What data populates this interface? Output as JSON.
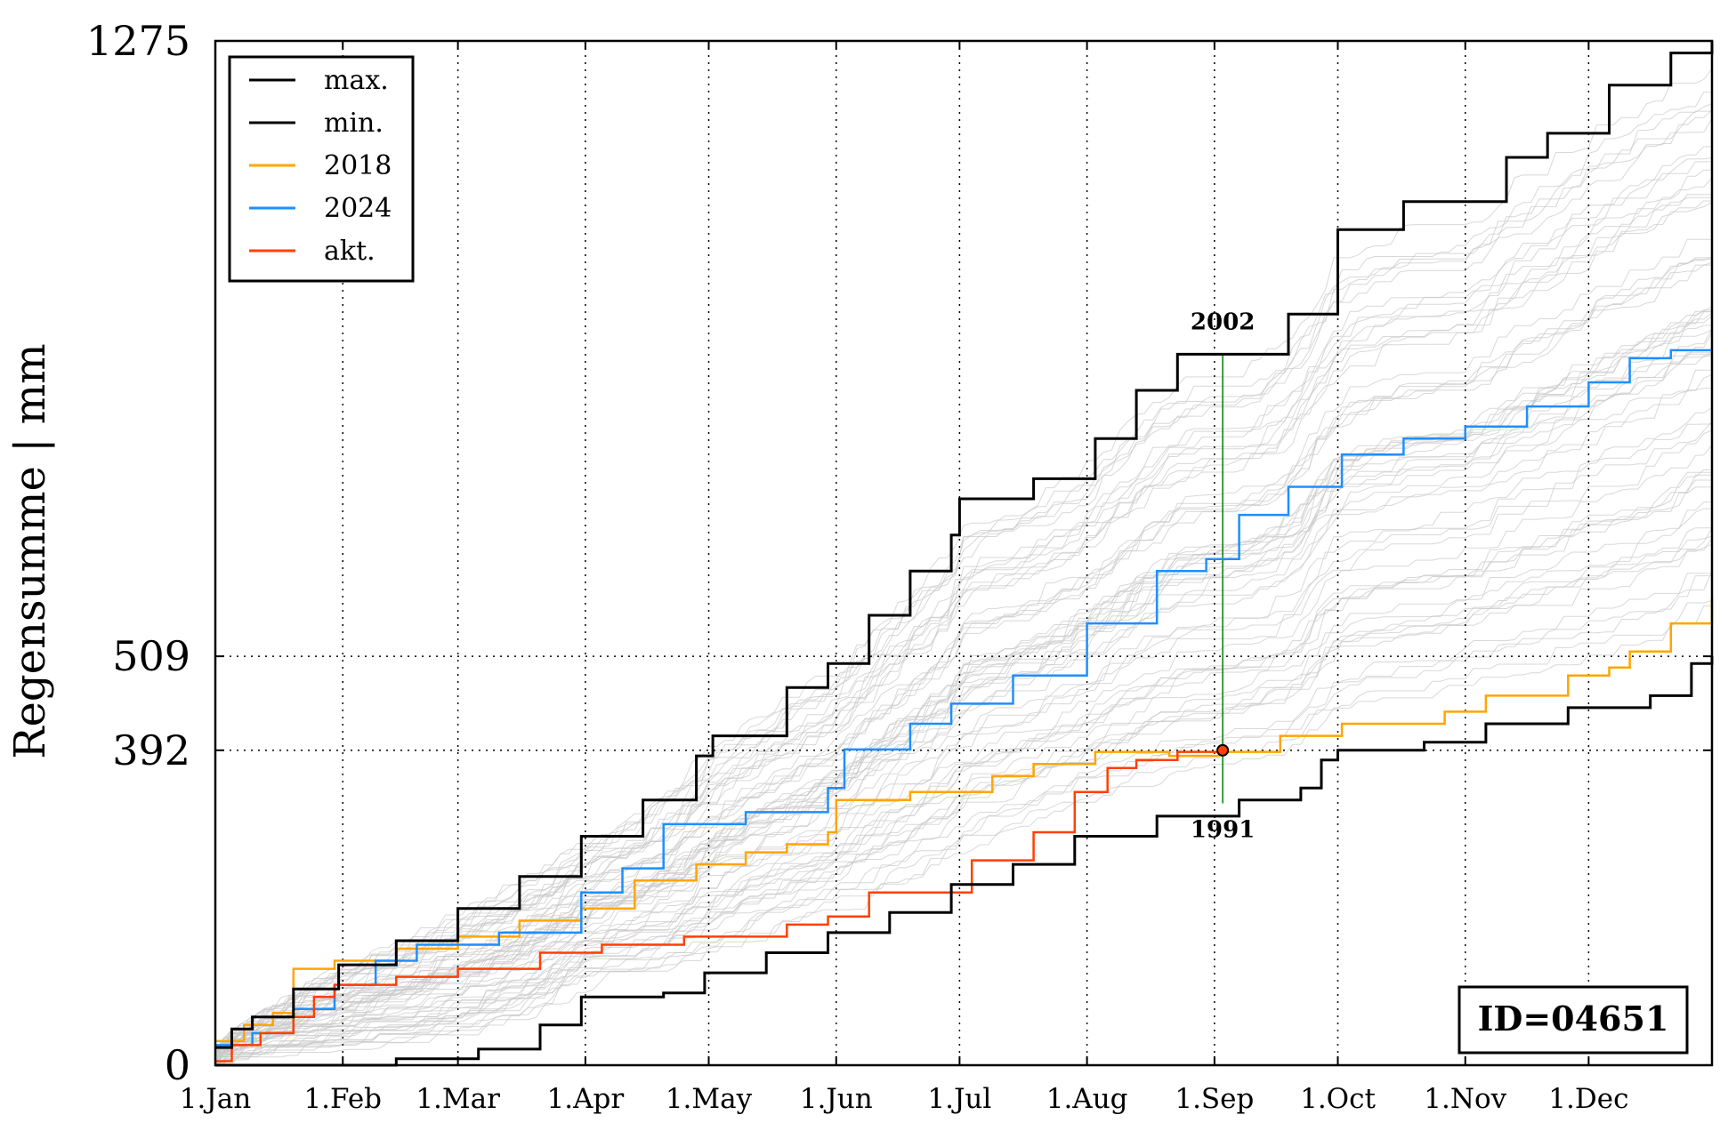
{
  "chart_data": {
    "type": "line",
    "ylabel": "Regensumme | mm",
    "ylim": [
      0,
      1275
    ],
    "yticks": [
      "0",
      "392",
      "509",
      "1275"
    ],
    "xticks": [
      "1.Jan",
      "1.Feb",
      "1.Mar",
      "1.Apr",
      "1.May",
      "1.Jun",
      "1.Jul",
      "1.Aug",
      "1.Sep",
      "1.Oct",
      "1.Nov",
      "1.Dec"
    ],
    "xtick_days": [
      1,
      32,
      60,
      91,
      121,
      152,
      182,
      213,
      244,
      274,
      305,
      335
    ],
    "grid": true,
    "legend_position": "upper-left",
    "station_id": "ID=04651",
    "annotations": {
      "max_year": "2002",
      "min_year": "1991",
      "current_day": 246,
      "current_value": 392
    },
    "colors": {
      "max": "#000000",
      "min": "#000000",
      "y2018": "#ffa500",
      "y2024": "#1e8fff",
      "akt": "#ff4000",
      "background": "#c8c8c8",
      "marker_line": "#008000"
    },
    "series": [
      {
        "name": "max.",
        "color": "#000000",
        "points": [
          [
            1,
            22
          ],
          [
            5,
            45
          ],
          [
            10,
            60
          ],
          [
            20,
            95
          ],
          [
            31,
            125
          ],
          [
            45,
            155
          ],
          [
            60,
            195
          ],
          [
            75,
            235
          ],
          [
            90,
            285
          ],
          [
            105,
            330
          ],
          [
            118,
            385
          ],
          [
            122,
            410
          ],
          [
            140,
            470
          ],
          [
            150,
            500
          ],
          [
            160,
            560
          ],
          [
            170,
            615
          ],
          [
            180,
            660
          ],
          [
            182,
            705
          ],
          [
            200,
            730
          ],
          [
            215,
            780
          ],
          [
            225,
            840
          ],
          [
            235,
            885
          ],
          [
            250,
            885
          ],
          [
            262,
            935
          ],
          [
            274,
            1040
          ],
          [
            290,
            1075
          ],
          [
            305,
            1075
          ],
          [
            315,
            1130
          ],
          [
            325,
            1160
          ],
          [
            340,
            1220
          ],
          [
            355,
            1260
          ],
          [
            365,
            1275
          ]
        ]
      },
      {
        "name": "min.",
        "color": "#000000",
        "points": [
          [
            1,
            0
          ],
          [
            25,
            0
          ],
          [
            45,
            8
          ],
          [
            65,
            20
          ],
          [
            80,
            50
          ],
          [
            90,
            85
          ],
          [
            110,
            90
          ],
          [
            120,
            115
          ],
          [
            135,
            140
          ],
          [
            150,
            165
          ],
          [
            165,
            190
          ],
          [
            180,
            225
          ],
          [
            195,
            250
          ],
          [
            210,
            285
          ],
          [
            230,
            310
          ],
          [
            250,
            330
          ],
          [
            265,
            345
          ],
          [
            270,
            380
          ],
          [
            274,
            392
          ],
          [
            295,
            402
          ],
          [
            310,
            425
          ],
          [
            330,
            445
          ],
          [
            350,
            460
          ],
          [
            360,
            500
          ],
          [
            365,
            509
          ]
        ]
      },
      {
        "name": "2018",
        "color": "#ffa500",
        "points": [
          [
            1,
            30
          ],
          [
            8,
            50
          ],
          [
            15,
            65
          ],
          [
            20,
            120
          ],
          [
            30,
            130
          ],
          [
            45,
            145
          ],
          [
            60,
            160
          ],
          [
            75,
            180
          ],
          [
            90,
            195
          ],
          [
            103,
            230
          ],
          [
            118,
            250
          ],
          [
            130,
            265
          ],
          [
            140,
            275
          ],
          [
            150,
            290
          ],
          [
            152,
            330
          ],
          [
            170,
            340
          ],
          [
            190,
            360
          ],
          [
            200,
            375
          ],
          [
            215,
            390
          ],
          [
            233,
            385
          ],
          [
            245,
            390
          ],
          [
            260,
            410
          ],
          [
            275,
            425
          ],
          [
            300,
            440
          ],
          [
            310,
            460
          ],
          [
            330,
            485
          ],
          [
            340,
            495
          ],
          [
            345,
            515
          ],
          [
            355,
            550
          ],
          [
            365,
            582
          ]
        ]
      },
      {
        "name": "2024",
        "color": "#1e8fff",
        "points": [
          [
            1,
            25
          ],
          [
            10,
            40
          ],
          [
            20,
            70
          ],
          [
            30,
            100
          ],
          [
            40,
            130
          ],
          [
            50,
            150
          ],
          [
            70,
            165
          ],
          [
            90,
            215
          ],
          [
            100,
            245
          ],
          [
            110,
            300
          ],
          [
            130,
            315
          ],
          [
            150,
            345
          ],
          [
            154,
            393
          ],
          [
            170,
            425
          ],
          [
            180,
            450
          ],
          [
            195,
            485
          ],
          [
            213,
            550
          ],
          [
            230,
            615
          ],
          [
            242,
            630
          ],
          [
            250,
            685
          ],
          [
            262,
            720
          ],
          [
            275,
            760
          ],
          [
            290,
            780
          ],
          [
            305,
            795
          ],
          [
            320,
            820
          ],
          [
            335,
            850
          ],
          [
            345,
            880
          ],
          [
            355,
            890
          ],
          [
            365,
            890
          ]
        ]
      },
      {
        "name": "akt.",
        "color": "#ff4000",
        "points": [
          [
            1,
            5
          ],
          [
            5,
            25
          ],
          [
            12,
            40
          ],
          [
            20,
            60
          ],
          [
            25,
            85
          ],
          [
            30,
            100
          ],
          [
            45,
            110
          ],
          [
            60,
            120
          ],
          [
            80,
            140
          ],
          [
            95,
            150
          ],
          [
            115,
            160
          ],
          [
            140,
            175
          ],
          [
            150,
            185
          ],
          [
            160,
            215
          ],
          [
            185,
            255
          ],
          [
            200,
            290
          ],
          [
            210,
            340
          ],
          [
            218,
            370
          ],
          [
            225,
            380
          ],
          [
            235,
            390
          ],
          [
            246,
            392
          ]
        ]
      }
    ]
  }
}
